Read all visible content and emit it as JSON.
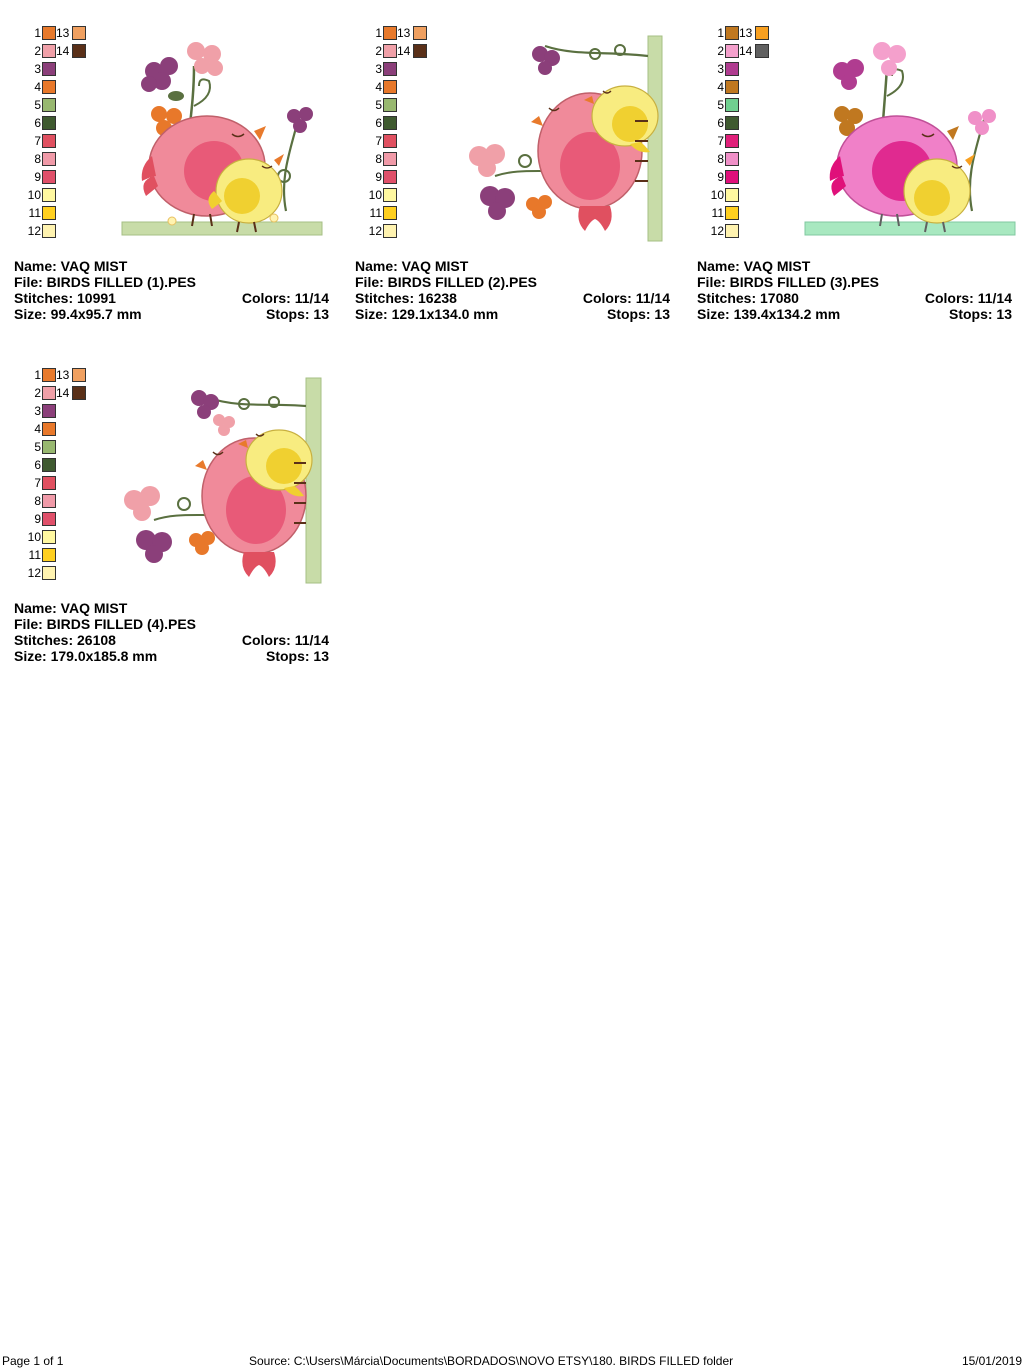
{
  "designs": [
    {
      "name_label": "Name: VAQ MIST",
      "file_label": "File: BIRDS FILLED (1).PES",
      "stitches_label": "Stitches: 10991",
      "colors_label": "Colors: 11/14",
      "size_label": "Size: 99.4x95.7 mm",
      "stops_label": "Stops: 13",
      "swatches": [
        {
          "n": "1",
          "color": "#e87a2c"
        },
        {
          "n": "2",
          "color": "#f0a0a8"
        },
        {
          "n": "3",
          "color": "#8b3f7a"
        },
        {
          "n": "4",
          "color": "#e8782a"
        },
        {
          "n": "5",
          "color": "#98b870"
        },
        {
          "n": "6",
          "color": "#3f5a30"
        },
        {
          "n": "7",
          "color": "#e05060"
        },
        {
          "n": "8",
          "color": "#f09aa8"
        },
        {
          "n": "9",
          "color": "#e0506a"
        },
        {
          "n": "10",
          "color": "#fff8a0"
        },
        {
          "n": "11",
          "color": "#ffd020"
        },
        {
          "n": "12",
          "color": "#fff3b0"
        }
      ],
      "swatches_extra": [
        {
          "n": "13",
          "color": "#f0a060"
        },
        {
          "n": "14",
          "color": "#5a3018"
        }
      ]
    },
    {
      "name_label": "Name: VAQ MIST",
      "file_label": "File: BIRDS FILLED (2).PES",
      "stitches_label": "Stitches: 16238",
      "colors_label": "Colors: 11/14",
      "size_label": "Size: 129.1x134.0 mm",
      "stops_label": "Stops: 13",
      "swatches": [
        {
          "n": "1",
          "color": "#e87a2c"
        },
        {
          "n": "2",
          "color": "#f0a0a8"
        },
        {
          "n": "3",
          "color": "#8b3f7a"
        },
        {
          "n": "4",
          "color": "#e8782a"
        },
        {
          "n": "5",
          "color": "#98b870"
        },
        {
          "n": "6",
          "color": "#3f5a30"
        },
        {
          "n": "7",
          "color": "#e05060"
        },
        {
          "n": "8",
          "color": "#f09aa8"
        },
        {
          "n": "9",
          "color": "#e0506a"
        },
        {
          "n": "10",
          "color": "#fff8a0"
        },
        {
          "n": "11",
          "color": "#ffd020"
        },
        {
          "n": "12",
          "color": "#fff3b0"
        }
      ],
      "swatches_extra": [
        {
          "n": "13",
          "color": "#f0a060"
        },
        {
          "n": "14",
          "color": "#5a3018"
        }
      ]
    },
    {
      "name_label": "Name: VAQ MIST",
      "file_label": "File: BIRDS FILLED (3).PES",
      "stitches_label": "Stitches: 17080",
      "colors_label": "Colors: 11/14",
      "size_label": "Size: 139.4x134.2 mm",
      "stops_label": "Stops: 13",
      "swatches": [
        {
          "n": "1",
          "color": "#c07820"
        },
        {
          "n": "2",
          "color": "#f4a0cc"
        },
        {
          "n": "3",
          "color": "#b03c90"
        },
        {
          "n": "4",
          "color": "#c07820"
        },
        {
          "n": "5",
          "color": "#70d090"
        },
        {
          "n": "6",
          "color": "#3f5a30"
        },
        {
          "n": "7",
          "color": "#e0207a"
        },
        {
          "n": "8",
          "color": "#f090c8"
        },
        {
          "n": "9",
          "color": "#e0107a"
        },
        {
          "n": "10",
          "color": "#fff8a0"
        },
        {
          "n": "11",
          "color": "#ffd020"
        },
        {
          "n": "12",
          "color": "#fff3b0"
        }
      ],
      "swatches_extra": [
        {
          "n": "13",
          "color": "#f8a020"
        },
        {
          "n": "14",
          "color": "#606060"
        }
      ]
    },
    {
      "name_label": "Name: VAQ MIST",
      "file_label": "File: BIRDS FILLED (4).PES",
      "stitches_label": "Stitches: 26108",
      "colors_label": "Colors: 11/14",
      "size_label": "Size: 179.0x185.8 mm",
      "stops_label": "Stops: 13",
      "swatches": [
        {
          "n": "1",
          "color": "#e87a2c"
        },
        {
          "n": "2",
          "color": "#f0a0a8"
        },
        {
          "n": "3",
          "color": "#8b3f7a"
        },
        {
          "n": "4",
          "color": "#e8782a"
        },
        {
          "n": "5",
          "color": "#98b870"
        },
        {
          "n": "6",
          "color": "#3f5a30"
        },
        {
          "n": "7",
          "color": "#e05060"
        },
        {
          "n": "8",
          "color": "#f09aa8"
        },
        {
          "n": "9",
          "color": "#e0506a"
        },
        {
          "n": "10",
          "color": "#fff8a0"
        },
        {
          "n": "11",
          "color": "#ffd020"
        },
        {
          "n": "12",
          "color": "#fff3b0"
        }
      ],
      "swatches_extra": [
        {
          "n": "13",
          "color": "#f0a060"
        },
        {
          "n": "14",
          "color": "#5a3018"
        }
      ]
    }
  ],
  "footer": {
    "page_label": "Page 1 of 1",
    "source_label": "Source: C:\\Users\\Márcia\\Documents\\BORDADOS\\NOVO ETSY\\180. BIRDS FILLED folder",
    "date_label": "15/01/2019"
  },
  "palette": {
    "pink_body": "#f08a9a",
    "pink_wing": "#e85a78",
    "magenta_body": "#f080c8",
    "magenta_wing": "#e02a90",
    "yellow_body": "#f8ec80",
    "yellow_wing": "#f0d030",
    "ground_green": "#c8dca8",
    "ground_mint": "#a8e8c0",
    "stem": "#5a7040"
  }
}
